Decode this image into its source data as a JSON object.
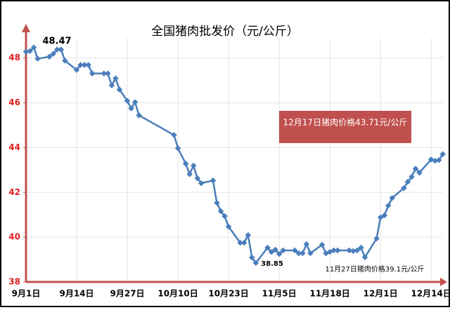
{
  "chart_data": {
    "type": "line",
    "title": "全国猪肉批发价（元/公斤）",
    "x": [
      "9月1日",
      "9月2日",
      "9月3日",
      "9月4日",
      "9月7日",
      "9月8日",
      "9月9日",
      "9月10日",
      "9月11日",
      "9月14日",
      "9月15日",
      "9月16日",
      "9月17日",
      "9月18日",
      "9月21日",
      "9月22日",
      "9月23日",
      "9月24日",
      "9月25日",
      "9月27日",
      "9月28日",
      "9月29日",
      "9月30日",
      "10月9日",
      "10月10日",
      "10月12日",
      "10月13日",
      "10月14日",
      "10月15日",
      "10月16日",
      "10月19日",
      "10月20日",
      "10月21日",
      "10月22日",
      "10月23日",
      "10月26日",
      "10月27日",
      "10月28日",
      "10月29日",
      "10月30日",
      "11月2日",
      "11月3日",
      "11月4日",
      "11月5日",
      "11月6日",
      "11月9日",
      "11月10日",
      "11月11日",
      "11月12日",
      "11月13日",
      "11月16日",
      "11月17日",
      "11月18日",
      "11月19日",
      "11月20日",
      "11月23日",
      "11月24日",
      "11月25日",
      "11月26日",
      "11月27日",
      "11月30日",
      "12月1日",
      "12月2日",
      "12月3日",
      "12月4日",
      "12月7日",
      "12月8日",
      "12月9日",
      "12月10日",
      "12月11日",
      "12月14日",
      "12月15日",
      "12月16日",
      "12月17日"
    ],
    "series": [
      {
        "name": "全国猪肉批发价",
        "color": "#4a7ebb",
        "values": [
          48.28,
          48.31,
          48.47,
          47.97,
          48.06,
          48.19,
          48.38,
          48.38,
          47.88,
          47.47,
          47.69,
          47.69,
          47.69,
          47.31,
          47.31,
          47.31,
          46.78,
          47.09,
          46.59,
          46.09,
          45.75,
          46.03,
          45.44,
          44.56,
          43.97,
          43.28,
          42.81,
          43.19,
          42.63,
          42.41,
          42.53,
          41.53,
          41.16,
          40.94,
          40.47,
          39.75,
          39.75,
          40.09,
          39.09,
          38.85,
          39.53,
          39.34,
          39.44,
          39.25,
          39.41,
          39.41,
          39.28,
          39.28,
          39.69,
          39.28,
          39.66,
          39.28,
          39.34,
          39.41,
          39.41,
          39.41,
          39.38,
          39.41,
          39.53,
          39.1,
          39.94,
          40.88,
          40.97,
          41.41,
          41.75,
          42.19,
          42.47,
          42.69,
          43.06,
          42.88,
          43.47,
          43.41,
          43.44,
          43.71
        ]
      }
    ],
    "xticks": [
      "9月1日",
      "9月14日",
      "9月27日",
      "10月10日",
      "10月23日",
      "11月5日",
      "11月18日",
      "12月1日",
      "12月14日"
    ],
    "ylim": [
      38,
      48.9
    ],
    "yticks": [
      38,
      40,
      42,
      44,
      46,
      48
    ],
    "grid": true,
    "annotations": [
      {
        "text": "48.47"
      },
      {
        "text": "38.85"
      },
      {
        "text": "11月27日猪肉价格39.1元/公斤"
      },
      {
        "text": "12月17日猪肉价格43.71元/公斤"
      }
    ]
  }
}
